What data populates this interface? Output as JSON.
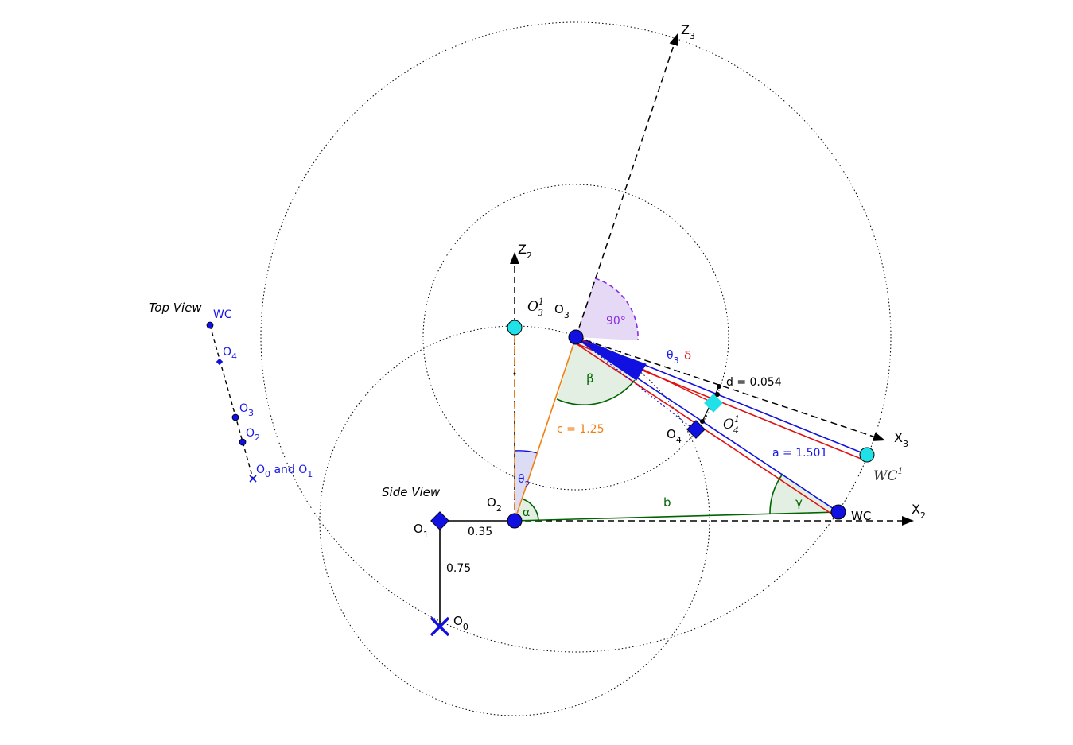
{
  "views": {
    "top_view": "Top View",
    "side_view": "Side View"
  },
  "top_view_labels": {
    "wc": "WC",
    "o4": "O",
    "o4_sub": "4",
    "o3": "O",
    "o3_sub": "3",
    "o2": "O",
    "o2_sub": "2",
    "o01_a": "O",
    "o01_a_sub": "0",
    "o01_and": " and O",
    "o01_b_sub": "1"
  },
  "side_view_labels": {
    "z3": "Z",
    "z3_sub": "3",
    "z2": "Z",
    "z2_sub": "2",
    "x3": "X",
    "x3_sub": "3",
    "x2": "X",
    "x2_sub": "2",
    "o3": "O",
    "o3_sub": "3",
    "o3_prime": "O",
    "o3_prime_sub": "3",
    "o3_prime_sup": "1",
    "o4": "O",
    "o4_sub": "4",
    "o4_prime": "O",
    "o4_prime_sub": "4",
    "o4_prime_sup": "1",
    "o2": "O",
    "o2_sub": "2",
    "o1": "O",
    "o1_sub": "1",
    "o0": "O",
    "o0_sub": "0",
    "wc": "WC",
    "wc_prime": "WC",
    "wc_prime_sup": "1"
  },
  "measurements": {
    "right_angle": "90°",
    "c": "c = 1.25",
    "a": "a = 1.501",
    "b": "b",
    "d": "d = 0.054",
    "len_035": "0.35",
    "len_075": "0.75"
  },
  "angles": {
    "alpha": "α",
    "beta": "β",
    "gamma": "γ",
    "theta2": "θ",
    "theta2_sub": "2",
    "theta3": "θ",
    "theta3_sub": "3",
    "delta": "δ"
  },
  "colors": {
    "joint_blue": "#1010e0",
    "cyan": "#20e0e8",
    "orange": "#f08010",
    "green": "#006400",
    "red": "#e01010",
    "purple": "#8a2be2",
    "label_blue": "#1a1ae6"
  }
}
